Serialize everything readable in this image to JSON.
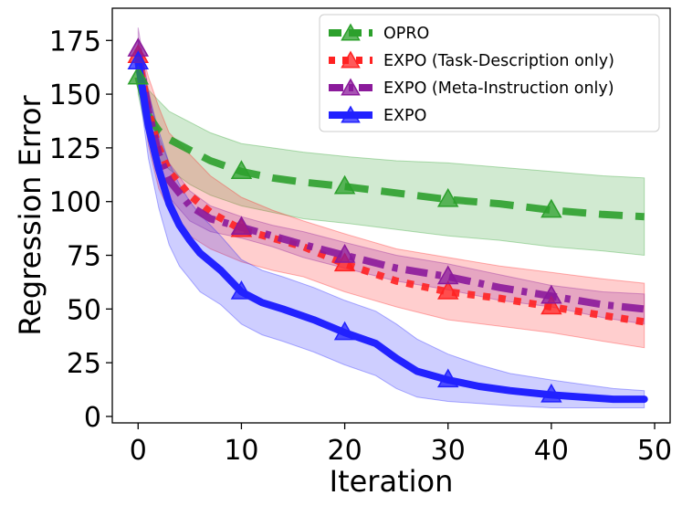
{
  "chart_data": {
    "type": "line",
    "xlabel": "Iteration",
    "ylabel": "Regression Error",
    "xlim": [
      -2.5,
      51.5
    ],
    "ylim": [
      -3,
      190
    ],
    "xticks": [
      0,
      10,
      20,
      30,
      40,
      50
    ],
    "yticks": [
      0,
      25,
      50,
      75,
      100,
      125,
      150,
      175
    ],
    "xtick_labels": [
      "0",
      "10",
      "20",
      "30",
      "40",
      "50"
    ],
    "ytick_labels": [
      "0",
      "25",
      "50",
      "75",
      "100",
      "125",
      "150",
      "175"
    ],
    "grid": false,
    "legend_position": "top-right",
    "marker_x": [
      0,
      10,
      20,
      30,
      40
    ],
    "series": [
      {
        "name": "OPRO",
        "color": "#2ca02c",
        "linestyle": "dashed",
        "x": [
          0,
          1,
          2,
          3,
          5,
          7,
          10,
          13,
          16,
          20,
          25,
          30,
          35,
          40,
          45,
          49
        ],
        "y": [
          158,
          140,
          133,
          129,
          124,
          119,
          114,
          111,
          109,
          107,
          104,
          101,
          99,
          96,
          94,
          93
        ],
        "upper": [
          166,
          152,
          147,
          142,
          137,
          132,
          127,
          125,
          123,
          121,
          119,
          118,
          116,
          114,
          112,
          111
        ],
        "lower": [
          150,
          128,
          120,
          115,
          108,
          103,
          98,
          95,
          92,
          90,
          87,
          84,
          82,
          79,
          77,
          75
        ]
      },
      {
        "name": "EXPO (Task-Description only)",
        "color": "#ff2222",
        "linestyle": "dotted",
        "x": [
          0,
          1,
          2,
          3,
          5,
          7,
          10,
          13,
          16,
          20,
          25,
          30,
          35,
          40,
          45,
          49
        ],
        "y": [
          168,
          142,
          125,
          114,
          103,
          95,
          87,
          83,
          79,
          71,
          63,
          58,
          55,
          51,
          47,
          44
        ],
        "upper": [
          176,
          158,
          144,
          132,
          122,
          112,
          102,
          96,
          91,
          85,
          78,
          74,
          70,
          67,
          64,
          62
        ],
        "lower": [
          160,
          126,
          106,
          96,
          84,
          78,
          72,
          68,
          65,
          58,
          51,
          45,
          42,
          39,
          35,
          32
        ]
      },
      {
        "name": "EXPO (Meta-Instruction only)",
        "color": "#8b1a9b",
        "linestyle": "dashdot",
        "x": [
          0,
          1,
          2,
          3,
          5,
          7,
          10,
          13,
          16,
          20,
          25,
          30,
          35,
          40,
          45,
          49
        ],
        "y": [
          171,
          142,
          122,
          110,
          98,
          92,
          88,
          84,
          80,
          75,
          69,
          65,
          60,
          56,
          52,
          50
        ],
        "upper": [
          181,
          152,
          130,
          118,
          105,
          98,
          93,
          89,
          86,
          81,
          75,
          71,
          66,
          61,
          58,
          57
        ],
        "lower": [
          161,
          132,
          114,
          102,
          91,
          86,
          83,
          79,
          74,
          69,
          63,
          59,
          54,
          51,
          46,
          43
        ]
      },
      {
        "name": "EXPO",
        "color": "#2222ff",
        "linestyle": "solid",
        "x": [
          0,
          1,
          2,
          3,
          4,
          5,
          6,
          8,
          10,
          12,
          14,
          17,
          20,
          23,
          25,
          27,
          30,
          33,
          36,
          40,
          43,
          46,
          49
        ],
        "y": [
          165,
          135,
          115,
          99,
          89,
          82,
          76,
          68,
          58,
          53,
          50,
          45,
          39,
          34,
          27,
          21,
          17,
          14,
          12,
          10,
          9,
          8,
          8
        ],
        "upper": [
          175,
          150,
          133,
          118,
          108,
          100,
          94,
          84,
          73,
          68,
          65,
          60,
          54,
          49,
          43,
          36,
          29,
          24,
          20,
          17,
          15,
          13,
          12
        ],
        "lower": [
          155,
          120,
          97,
          80,
          70,
          64,
          58,
          52,
          43,
          38,
          35,
          30,
          24,
          19,
          13,
          9,
          7,
          6,
          5,
          4,
          4,
          4,
          4
        ]
      }
    ]
  }
}
